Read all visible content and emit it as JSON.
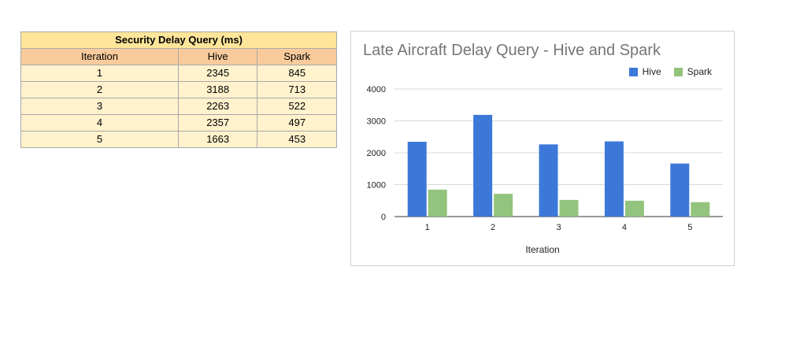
{
  "table": {
    "title": "Security Delay Query (ms)",
    "headers": [
      "Iteration",
      "Hive",
      "Spark"
    ],
    "rows": [
      [
        "1",
        "2345",
        "845"
      ],
      [
        "2",
        "3188",
        "713"
      ],
      [
        "3",
        "2263",
        "522"
      ],
      [
        "4",
        "2357",
        "497"
      ],
      [
        "5",
        "1663",
        "453"
      ]
    ]
  },
  "chart_data": {
    "type": "bar",
    "title": "Late Aircraft Delay Query - Hive and Spark",
    "xlabel": "Iteration",
    "ylabel": "",
    "categories": [
      "1",
      "2",
      "3",
      "4",
      "5"
    ],
    "series": [
      {
        "name": "Hive",
        "color": "#3c78d8",
        "values": [
          2345,
          3188,
          2263,
          2357,
          1663
        ]
      },
      {
        "name": "Spark",
        "color": "#93c47d",
        "values": [
          845,
          713,
          522,
          497,
          453
        ]
      }
    ],
    "ylim": [
      0,
      4000
    ],
    "yticks": [
      0,
      1000,
      2000,
      3000,
      4000
    ],
    "grid": true,
    "legend_position": "top-right"
  }
}
